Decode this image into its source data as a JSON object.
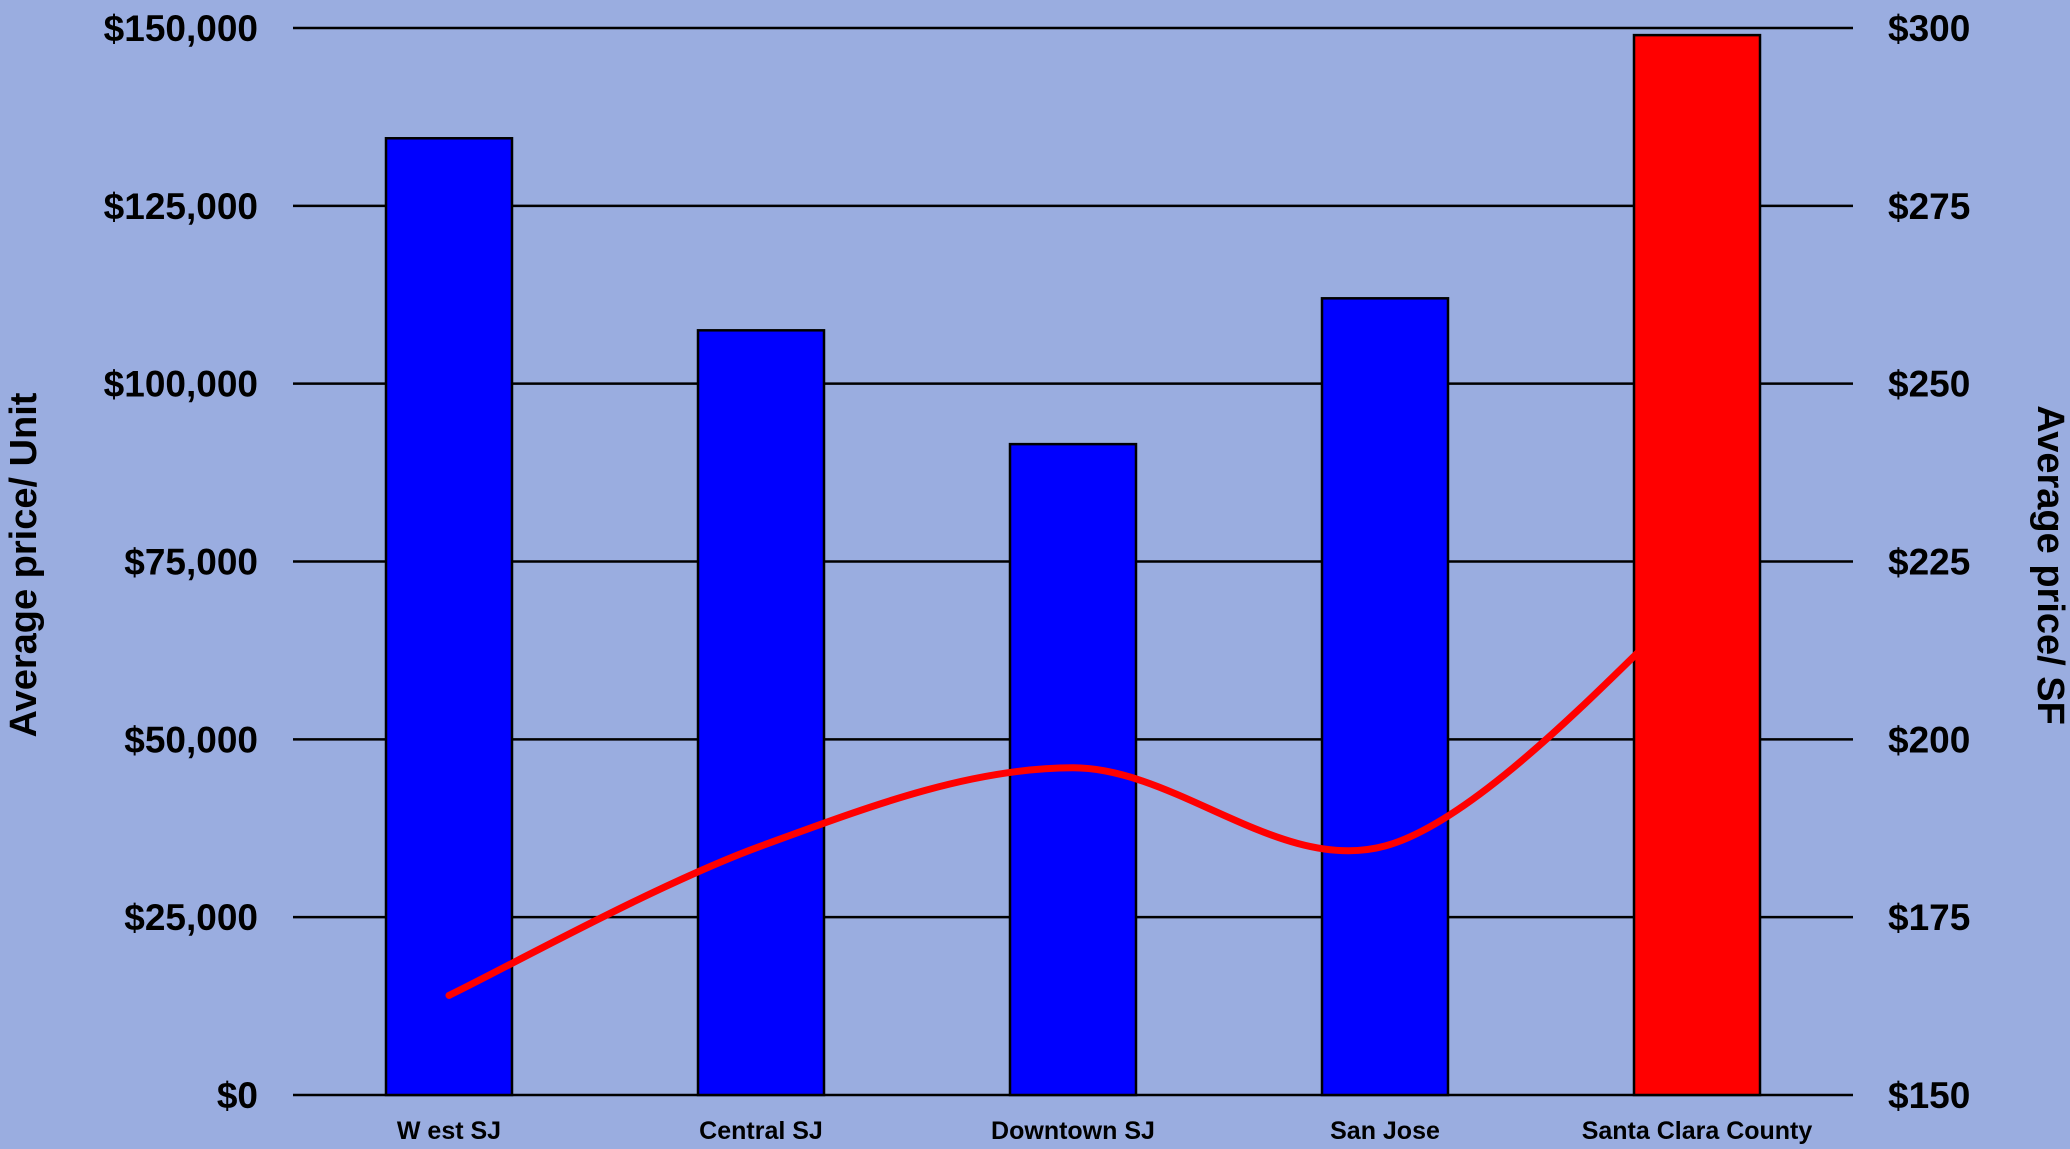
{
  "chart_data": {
    "type": "bar",
    "categories": [
      "W est SJ",
      "Central SJ",
      "Downtown SJ",
      "San Jose",
      "Santa Clara County"
    ],
    "series": [
      {
        "axis": "left",
        "kind": "bar",
        "values": [
          134500,
          107500,
          91500,
          112000,
          149000
        ],
        "colors": [
          "#0000ff",
          "#0000ff",
          "#0000ff",
          "#0000ff",
          "#ff0000"
        ]
      },
      {
        "axis": "right",
        "kind": "line",
        "color": "#ff0000",
        "values": [
          164,
          185,
          196,
          185,
          220
        ]
      }
    ],
    "ylabel": "Average price/ Unit",
    "ylabel_right": "Average price/ SF",
    "ylim": [
      0,
      150000
    ],
    "ylim_right": [
      150,
      300
    ],
    "yticks": [
      "$0",
      "$25,000",
      "$50,000",
      "$75,000",
      "$100,000",
      "$125,000",
      "$150,000"
    ],
    "yticks_right": [
      "$150",
      "$175",
      "$200",
      "$225",
      "$250",
      "$275",
      "$300"
    ],
    "grid": true,
    "legend": "none",
    "background": "#9aade0"
  }
}
